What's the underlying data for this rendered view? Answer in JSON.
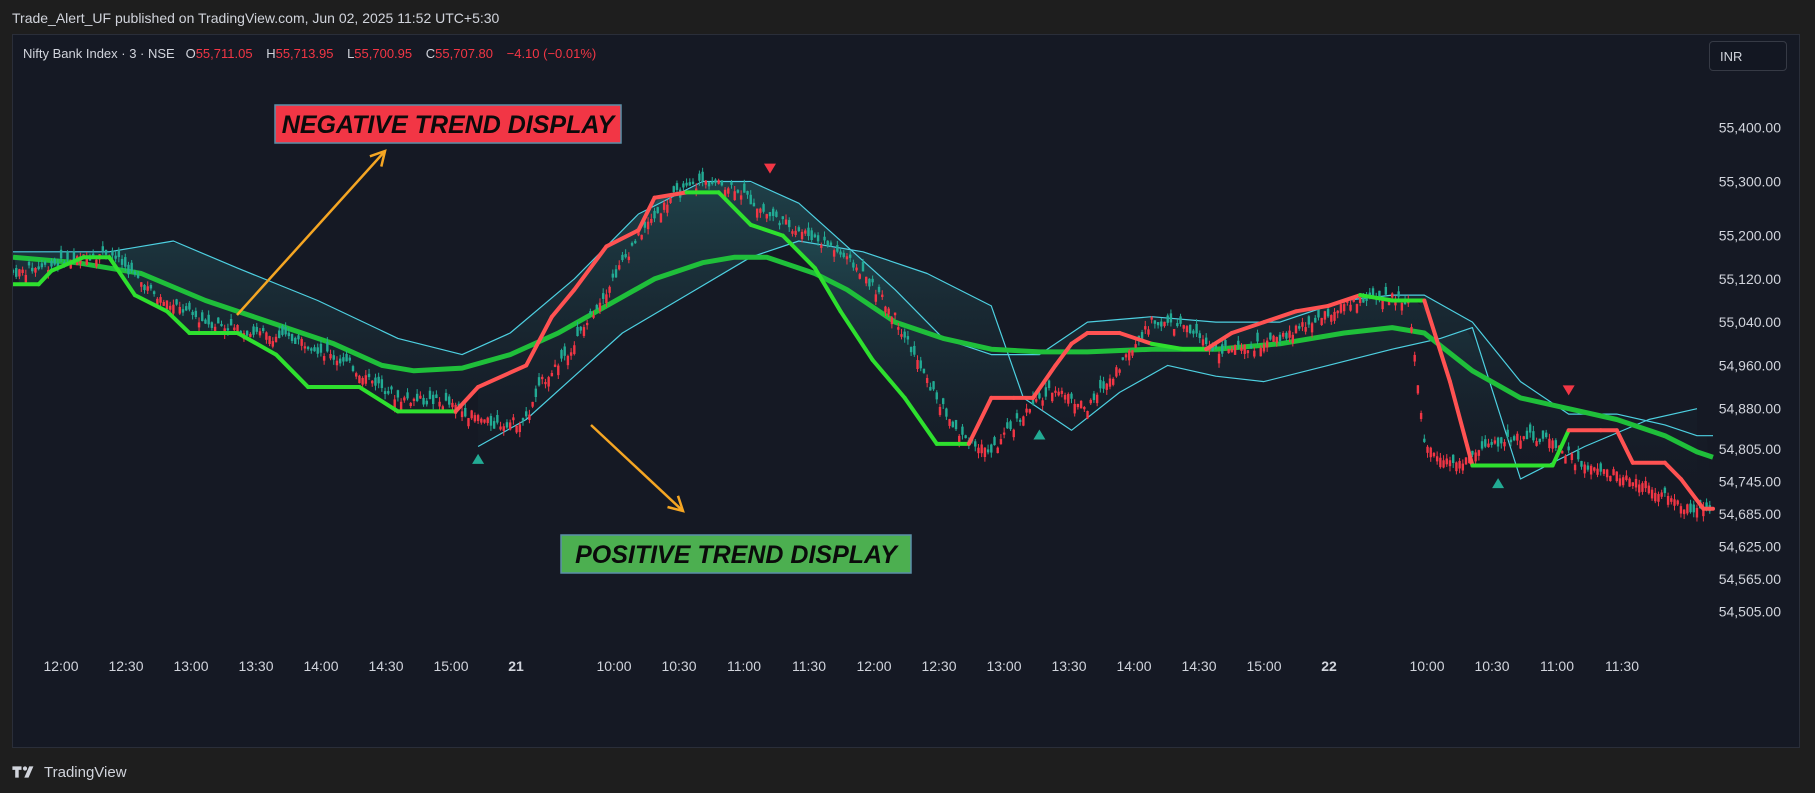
{
  "header": {
    "publish_text": "Trade_Alert_UF published on TradingView.com, Jun 02, 2025 11:52 UTC+5:30"
  },
  "legend": {
    "symbol": "Nifty Bank Index · 3 · NSE",
    "o_label": "O",
    "o_value": "55,711.05",
    "h_label": "H",
    "h_value": "55,713.95",
    "l_label": "L",
    "l_value": "55,700.95",
    "c_label": "C",
    "c_value": "55,707.80",
    "change": "−4.10 (−0.01%)"
  },
  "currency": "INR",
  "annotations": {
    "negative_label": "NEGATIVE TREND DISPLAY",
    "positive_label": "POSITIVE TREND DISPLAY"
  },
  "footer": {
    "brand": "TradingView"
  },
  "colors": {
    "up_candle": "#22ab94",
    "down_candle": "#f23645",
    "trend_up": "#2ee02e",
    "trend_down": "#ff5252",
    "ma": "#1fbf3a",
    "band": "#4dd0e1",
    "negative_box": "#f23645",
    "positive_box": "#4caf50",
    "arrow": "#f5a623"
  },
  "chart_data": {
    "type": "candlestick",
    "y_ticks": [
      "55,400.00",
      "55,300.00",
      "55,200.00",
      "55,120.00",
      "55,040.00",
      "54,960.00",
      "54,880.00",
      "54,805.00",
      "54,745.00",
      "54,685.00",
      "54,625.00",
      "54,565.00",
      "54,505.00"
    ],
    "ylim": [
      54480,
      55460
    ],
    "x_ticks": [
      "12:00",
      "12:30",
      "13:00",
      "13:30",
      "14:00",
      "14:30",
      "15:00",
      "21",
      "10:00",
      "10:30",
      "11:00",
      "11:30",
      "12:00",
      "12:30",
      "13:00",
      "13:30",
      "14:00",
      "14:30",
      "15:00",
      "22",
      "10:00",
      "10:30",
      "11:00",
      "11:30"
    ],
    "bold_ticks": [
      "21",
      "22"
    ],
    "price_path": [
      [
        0,
        55130
      ],
      [
        15,
        55150
      ],
      [
        30,
        55170
      ],
      [
        45,
        55085
      ],
      [
        60,
        55040
      ],
      [
        75,
        55020
      ],
      [
        90,
        55005
      ],
      [
        105,
        54960
      ],
      [
        120,
        54900
      ],
      [
        135,
        54890
      ],
      [
        150,
        54850
      ],
      [
        160,
        54860
      ],
      [
        165,
        54930
      ],
      [
        175,
        55000
      ],
      [
        185,
        55100
      ],
      [
        195,
        55200
      ],
      [
        205,
        55270
      ],
      [
        215,
        55300
      ],
      [
        225,
        55290
      ],
      [
        235,
        55240
      ],
      [
        245,
        55210
      ],
      [
        255,
        55180
      ],
      [
        265,
        55130
      ],
      [
        275,
        55050
      ],
      [
        285,
        54930
      ],
      [
        295,
        54830
      ],
      [
        305,
        54800
      ],
      [
        315,
        54870
      ],
      [
        325,
        54920
      ],
      [
        335,
        54880
      ],
      [
        345,
        54960
      ],
      [
        355,
        55040
      ],
      [
        365,
        55030
      ],
      [
        375,
        54990
      ],
      [
        385,
        54990
      ],
      [
        395,
        55010
      ],
      [
        405,
        55040
      ],
      [
        415,
        55070
      ],
      [
        425,
        55090
      ],
      [
        435,
        55080
      ],
      [
        440,
        54810
      ],
      [
        450,
        54780
      ],
      [
        460,
        54810
      ],
      [
        470,
        54830
      ],
      [
        480,
        54820
      ],
      [
        490,
        54770
      ],
      [
        500,
        54760
      ],
      [
        510,
        54740
      ],
      [
        520,
        54700
      ],
      [
        525,
        54690
      ]
    ],
    "trend_line": [
      [
        0,
        55110
      ],
      [
        8,
        55110
      ],
      [
        12,
        55135
      ],
      [
        22,
        55160
      ],
      [
        30,
        55160
      ],
      [
        38,
        55090
      ],
      [
        48,
        55060
      ],
      [
        55,
        55020
      ],
      [
        70,
        55020
      ],
      [
        82,
        54980
      ],
      [
        92,
        54920
      ],
      [
        108,
        54920
      ],
      [
        120,
        54875
      ],
      [
        138,
        54875
      ],
      [
        145,
        54920
      ],
      [
        160,
        54960
      ],
      [
        168,
        55050
      ],
      [
        175,
        55100
      ],
      [
        185,
        55180
      ],
      [
        195,
        55210
      ],
      [
        200,
        55270
      ],
      [
        210,
        55280
      ],
      [
        220,
        55280
      ],
      [
        230,
        55220
      ],
      [
        240,
        55200
      ],
      [
        250,
        55140
      ],
      [
        258,
        55060
      ],
      [
        268,
        54970
      ],
      [
        278,
        54900
      ],
      [
        288,
        54815
      ],
      [
        298,
        54815
      ],
      [
        305,
        54900
      ],
      [
        312,
        54900
      ],
      [
        318,
        54900
      ],
      [
        325,
        54960
      ],
      [
        330,
        55000
      ],
      [
        335,
        55020
      ],
      [
        345,
        55020
      ],
      [
        355,
        55000
      ],
      [
        365,
        54990
      ],
      [
        372,
        54990
      ],
      [
        380,
        55020
      ],
      [
        390,
        55040
      ],
      [
        400,
        55060
      ],
      [
        410,
        55070
      ],
      [
        420,
        55090
      ],
      [
        430,
        55080
      ],
      [
        440,
        55080
      ],
      [
        448,
        54930
      ],
      [
        455,
        54775
      ],
      [
        470,
        54775
      ],
      [
        480,
        54775
      ],
      [
        485,
        54840
      ],
      [
        495,
        54840
      ],
      [
        500,
        54840
      ],
      [
        505,
        54780
      ],
      [
        515,
        54780
      ],
      [
        520,
        54750
      ],
      [
        527,
        54695
      ],
      [
        530,
        54695
      ]
    ],
    "ma_line": [
      [
        0,
        55160
      ],
      [
        20,
        55150
      ],
      [
        40,
        55130
      ],
      [
        60,
        55080
      ],
      [
        80,
        55040
      ],
      [
        100,
        55000
      ],
      [
        115,
        54960
      ],
      [
        125,
        54950
      ],
      [
        140,
        54955
      ],
      [
        155,
        54980
      ],
      [
        170,
        55020
      ],
      [
        185,
        55070
      ],
      [
        200,
        55120
      ],
      [
        215,
        55150
      ],
      [
        225,
        55160
      ],
      [
        235,
        55160
      ],
      [
        250,
        55130
      ],
      [
        260,
        55100
      ],
      [
        275,
        55040
      ],
      [
        290,
        55010
      ],
      [
        305,
        54990
      ],
      [
        320,
        54985
      ],
      [
        335,
        54985
      ],
      [
        355,
        54990
      ],
      [
        375,
        54990
      ],
      [
        395,
        55000
      ],
      [
        415,
        55020
      ],
      [
        430,
        55030
      ],
      [
        440,
        55020
      ],
      [
        455,
        54950
      ],
      [
        470,
        54900
      ],
      [
        485,
        54880
      ],
      [
        500,
        54860
      ],
      [
        515,
        54830
      ],
      [
        525,
        54800
      ],
      [
        530,
        54790
      ]
    ],
    "band_upper": [
      [
        0,
        55170
      ],
      [
        30,
        55170
      ],
      [
        50,
        55190
      ],
      [
        70,
        55140
      ],
      [
        95,
        55080
      ],
      [
        120,
        55010
      ],
      [
        140,
        54980
      ],
      [
        155,
        55020
      ],
      [
        175,
        55120
      ],
      [
        195,
        55240
      ],
      [
        215,
        55300
      ],
      [
        230,
        55300
      ],
      [
        245,
        55260
      ],
      [
        260,
        55180
      ],
      [
        275,
        55100
      ],
      [
        290,
        55010
      ],
      [
        305,
        54980
      ],
      [
        320,
        54980
      ],
      [
        335,
        55040
      ],
      [
        355,
        55050
      ],
      [
        375,
        55040
      ],
      [
        395,
        55040
      ],
      [
        415,
        55080
      ],
      [
        430,
        55090
      ],
      [
        440,
        55090
      ],
      [
        455,
        55040
      ],
      [
        470,
        54930
      ],
      [
        485,
        54870
      ],
      [
        500,
        54870
      ],
      [
        515,
        54850
      ],
      [
        525,
        54830
      ],
      [
        530,
        54830
      ]
    ],
    "band_lower": [
      [
        145,
        54810
      ],
      [
        160,
        54860
      ],
      [
        175,
        54940
      ],
      [
        190,
        55020
      ],
      [
        210,
        55090
      ],
      [
        230,
        55160
      ],
      [
        245,
        55190
      ],
      [
        265,
        55170
      ],
      [
        285,
        55130
      ],
      [
        305,
        55070
      ],
      [
        315,
        54900
      ],
      [
        330,
        54840
      ],
      [
        345,
        54910
      ],
      [
        360,
        54960
      ],
      [
        375,
        54940
      ],
      [
        390,
        54930
      ],
      [
        410,
        54960
      ],
      [
        430,
        54990
      ],
      [
        445,
        55010
      ],
      [
        455,
        55030
      ],
      [
        470,
        54750
      ],
      [
        490,
        54810
      ],
      [
        510,
        54860
      ],
      [
        525,
        54880
      ]
    ],
    "signals_up": [
      [
        145,
        54815
      ],
      [
        320,
        54860
      ],
      [
        463,
        54770
      ]
    ],
    "signals_down": [
      [
        236,
        55285
      ],
      [
        485,
        54875
      ]
    ],
    "bars": 530
  }
}
